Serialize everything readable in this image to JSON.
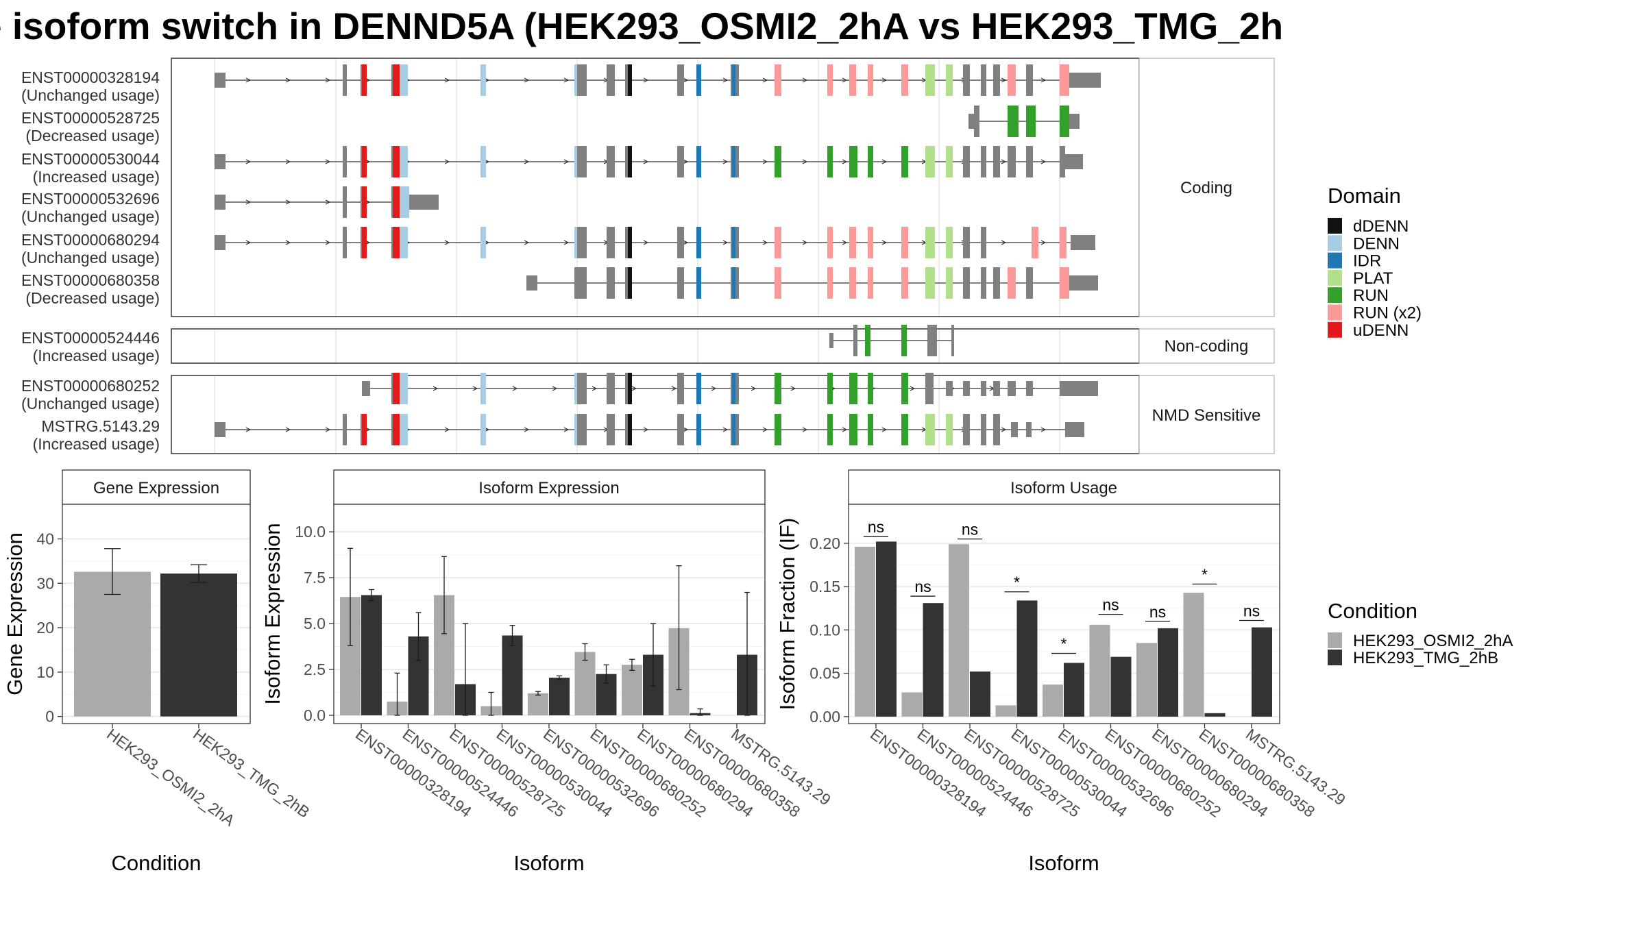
{
  "title": "e isoform switch in DENND5A (HEK293_OSMI2_2hA vs HEK293_TMG_2h",
  "colors": {
    "utr": "#808080",
    "dDENN": "#111111",
    "DENN": "#A6CEE3",
    "IDR": "#1F78B4",
    "PLAT": "#B2DF8A",
    "RUN": "#33A02C",
    "RUN (x2)": "#FB9A99",
    "uDENN": "#E31A1C",
    "osmi": "#AAAAAA",
    "tmg": "#333333"
  },
  "structure": {
    "groups": [
      {
        "label": "Coding",
        "isoforms": [
          {
            "id": "ENST00000328194",
            "usage": "(Unchanged usage)",
            "start": 313,
            "end": 1606,
            "arrows": true
          },
          {
            "id": "ENST00000528725",
            "usage": "(Decreased usage)",
            "start": 1413,
            "end": 1575,
            "arrows": false
          },
          {
            "id": "ENST00000530044",
            "usage": "(Increased usage)",
            "start": 313,
            "end": 1580,
            "arrows": true
          },
          {
            "id": "ENST00000532696",
            "usage": "(Unchanged usage)",
            "start": 313,
            "end": 640,
            "arrows": true
          },
          {
            "id": "ENST00000680294",
            "usage": "(Unchanged usage)",
            "start": 313,
            "end": 1598,
            "arrows": true
          },
          {
            "id": "ENST00000680358",
            "usage": "(Decreased usage)",
            "start": 768,
            "end": 1602,
            "arrows": false
          }
        ]
      },
      {
        "label": "Non-coding",
        "isoforms": [
          {
            "id": "ENST00000524446",
            "usage": "(Increased usage)",
            "start": 1210,
            "end": 1392,
            "arrows": false
          }
        ]
      },
      {
        "label": "NMD Sensitive",
        "isoforms": [
          {
            "id": "ENST00000680252",
            "usage": "(Unchanged usage)",
            "start": 528,
            "end": 1602,
            "arrows": true
          },
          {
            "id": "MSTRG.5143.29",
            "usage": "(Increased usage)",
            "start": 313,
            "end": 1582,
            "arrows": true
          }
        ]
      }
    ],
    "legend_title": "Domain",
    "legend": [
      "dDENN",
      "DENN",
      "IDR",
      "PLAT",
      "RUN",
      "RUN (x2)",
      "uDENN"
    ]
  },
  "chart_data": [
    {
      "type": "bar",
      "title": "Gene Expression",
      "xlabel": "Condition",
      "ylabel": "Gene Expression",
      "categories": [
        "HEK293_OSMI2_2hA",
        "HEK293_TMG_2hB"
      ],
      "values": [
        32.6,
        32.2
      ],
      "errors": [
        [
          27.5,
          37.8
        ],
        [
          30.2,
          34.2
        ]
      ],
      "ylim": [
        -1.6,
        47.8
      ],
      "yticks": [
        0,
        10,
        20,
        30,
        40
      ]
    },
    {
      "type": "bar",
      "title": "Isoform Expression",
      "xlabel": "Isoform",
      "ylabel": "Isoform Expression",
      "categories": [
        "ENST00000328194",
        "ENST00000524446",
        "ENST00000528725",
        "ENST00000530044",
        "ENST00000532696",
        "ENST00000680252",
        "ENST00000680294",
        "ENST00000680358",
        "MSTRG.5143.29"
      ],
      "ytick_labels": [
        "0.0",
        "2.5",
        "5.0",
        "7.5",
        "10.0"
      ],
      "ylim": [
        -0.45,
        11.5
      ],
      "series": [
        {
          "name": "HEK293_OSMI2_2hA",
          "values": [
            6.45,
            0.75,
            6.55,
            0.5,
            1.2,
            3.45,
            2.75,
            4.75,
            0.0
          ],
          "errors": [
            [
              3.8,
              9.1
            ],
            [
              0.0,
              2.3
            ],
            [
              4.45,
              8.65
            ],
            [
              0.0,
              1.25
            ],
            [
              1.1,
              1.3
            ],
            [
              3.0,
              3.9
            ],
            [
              2.45,
              3.05
            ],
            [
              1.4,
              8.15
            ],
            null
          ]
        },
        {
          "name": "HEK293_TMG_2hB",
          "values": [
            6.55,
            4.3,
            1.7,
            4.35,
            2.05,
            2.25,
            3.3,
            0.12,
            3.3
          ],
          "errors": [
            [
              6.25,
              6.85
            ],
            [
              3.0,
              5.6
            ],
            [
              0.0,
              5.0
            ],
            [
              3.8,
              4.9
            ],
            [
              1.95,
              2.15
            ],
            [
              1.75,
              2.75
            ],
            [
              1.6,
              5.0
            ],
            [
              0.0,
              0.35
            ],
            [
              0.0,
              6.7
            ]
          ]
        }
      ]
    },
    {
      "type": "bar",
      "title": "Isoform Usage",
      "xlabel": "Isoform",
      "ylabel": "Isoform Fraction (IF)",
      "categories": [
        "ENST00000328194",
        "ENST00000524446",
        "ENST00000528725",
        "ENST00000530044",
        "ENST00000532696",
        "ENST00000680252",
        "ENST00000680294",
        "ENST00000680358",
        "MSTRG.5143.29"
      ],
      "ytick_labels": [
        "0.00",
        "0.05",
        "0.10",
        "0.15",
        "0.20"
      ],
      "ylim": [
        -0.008,
        0.245
      ],
      "series": [
        {
          "name": "HEK293_OSMI2_2hA",
          "values": [
            0.196,
            0.028,
            0.199,
            0.013,
            0.037,
            0.106,
            0.085,
            0.143,
            0.0
          ]
        },
        {
          "name": "HEK293_TMG_2hB",
          "values": [
            0.202,
            0.131,
            0.052,
            0.134,
            0.062,
            0.069,
            0.102,
            0.004,
            0.103
          ]
        }
      ],
      "significance": [
        "ns",
        "ns",
        "ns",
        "*",
        "*",
        "ns",
        "ns",
        "*",
        "ns"
      ],
      "significance_y": [
        0.208,
        0.139,
        0.205,
        0.144,
        0.073,
        0.118,
        0.11,
        0.153,
        0.111
      ]
    }
  ],
  "condition_legend": {
    "title": "Condition",
    "items": [
      "HEK293_OSMI2_2hA",
      "HEK293_TMG_2hB"
    ]
  }
}
